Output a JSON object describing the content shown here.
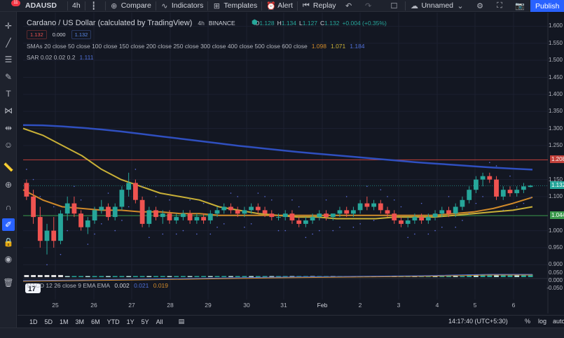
{
  "toolbar": {
    "symbol": "ADAUSD",
    "interval": "4h",
    "compare": "Compare",
    "indicators": "Indicators",
    "templates": "Templates",
    "alert": "Alert",
    "replay": "Replay",
    "layout_name": "Unnamed",
    "publish": "Publish",
    "notification_count": "11"
  },
  "legend": {
    "title": "Cardano / US Dollar (calculated by TradingView)",
    "interval": "4h",
    "exchange": "BINANCE",
    "open_label": "O",
    "open": "1.128",
    "high_label": "H",
    "high": "1.134",
    "low_label": "L",
    "low": "1.127",
    "close_label": "C",
    "close": "1.132",
    "change": "+0.004 (+0.35%)",
    "sell_price": "1.132",
    "spread": "0.000",
    "buy_price": "1.132",
    "sma_text": "SMAs 20 close 50 close 100 close 150 close 200 close 250 close 300 close 400 close 500 close 600 close",
    "sma_val1": "1.098",
    "sma_val2": "1.071",
    "sma_val3": "1.184",
    "sar_text": "SAR 0.02 0.02 0.2",
    "sar_val": "1.111",
    "macd_text": "MACD 12 26 close 9 EMA EMA",
    "macd_val1": "0.002",
    "macd_val2": "0.021",
    "macd_val3": "0.019"
  },
  "price_axis": {
    "labels": [
      "1.600",
      "1.550",
      "1.500",
      "1.450",
      "1.400",
      "1.350",
      "1.300",
      "1.250",
      "1.150",
      "1.100",
      "1.000",
      "0.950",
      "0.900"
    ],
    "tag_red": "1.208",
    "tag_current": "1.132",
    "tag_green": "1.044",
    "macd_labels": [
      "0.050",
      "0.000",
      "-0.050"
    ]
  },
  "time_axis": {
    "labels": [
      "25",
      "26",
      "27",
      "28",
      "29",
      "30",
      "31",
      "Feb",
      "2",
      "3",
      "4",
      "5",
      "6"
    ]
  },
  "bottom": {
    "ranges": [
      "1D",
      "5D",
      "1M",
      "3M",
      "6M",
      "YTD",
      "1Y",
      "5Y",
      "All"
    ],
    "clock": "14:17:40 (UTC+5:30)",
    "percent": "%",
    "log": "log",
    "auto": "auto"
  },
  "colors": {
    "up": "#26a69a",
    "down": "#ef5350",
    "sma_blue": "#2f4fbf",
    "sma_yellow": "#c9b037",
    "sma_orange": "#d08a2a",
    "red_line": "#c2413b",
    "green_line": "#3c9a4d"
  },
  "chart_data": {
    "type": "candlestick",
    "symbol": "ADAUSD",
    "interval": "4h",
    "candles_ohlc": [
      [
        1.14,
        1.15,
        1.09,
        1.1
      ],
      [
        1.1,
        1.12,
        1.02,
        1.04
      ],
      [
        1.04,
        1.07,
        0.95,
        0.97
      ],
      [
        0.97,
        1.02,
        0.93,
        1.0
      ],
      [
        1.0,
        1.04,
        0.95,
        0.97
      ],
      [
        0.97,
        1.06,
        0.96,
        1.05
      ],
      [
        1.05,
        1.1,
        1.03,
        1.08
      ],
      [
        1.08,
        1.1,
        1.04,
        1.05
      ],
      [
        1.05,
        1.06,
        1.0,
        1.01
      ],
      [
        1.01,
        1.04,
        0.99,
        1.03
      ],
      [
        1.03,
        1.07,
        1.02,
        1.06
      ],
      [
        1.06,
        1.09,
        1.05,
        1.07
      ],
      [
        1.07,
        1.08,
        1.03,
        1.04
      ],
      [
        1.04,
        1.08,
        1.03,
        1.07
      ],
      [
        1.07,
        1.13,
        1.06,
        1.12
      ],
      [
        1.12,
        1.17,
        1.1,
        1.14
      ],
      [
        1.14,
        1.15,
        1.08,
        1.09
      ],
      [
        1.09,
        1.1,
        1.01,
        1.02
      ],
      [
        1.02,
        1.07,
        1.01,
        1.06
      ],
      [
        1.06,
        1.07,
        1.03,
        1.04
      ],
      [
        1.04,
        1.06,
        1.02,
        1.05
      ],
      [
        1.05,
        1.06,
        1.02,
        1.03
      ],
      [
        1.03,
        1.05,
        1.02,
        1.04
      ],
      [
        1.04,
        1.06,
        1.03,
        1.05
      ],
      [
        1.05,
        1.06,
        1.02,
        1.03
      ],
      [
        1.03,
        1.05,
        1.02,
        1.04
      ],
      [
        1.04,
        1.05,
        1.02,
        1.03
      ],
      [
        1.03,
        1.06,
        1.02,
        1.05
      ],
      [
        1.05,
        1.07,
        1.04,
        1.06
      ],
      [
        1.06,
        1.08,
        1.05,
        1.07
      ],
      [
        1.07,
        1.08,
        1.05,
        1.06
      ],
      [
        1.06,
        1.07,
        1.04,
        1.05
      ],
      [
        1.05,
        1.07,
        1.04,
        1.06
      ],
      [
        1.06,
        1.08,
        1.05,
        1.07
      ],
      [
        1.07,
        1.08,
        1.05,
        1.06
      ],
      [
        1.06,
        1.07,
        1.04,
        1.05
      ],
      [
        1.05,
        1.06,
        1.03,
        1.04
      ],
      [
        1.04,
        1.05,
        1.03,
        1.04
      ],
      [
        1.04,
        1.06,
        1.03,
        1.05
      ],
      [
        1.05,
        1.06,
        1.02,
        1.03
      ],
      [
        1.03,
        1.04,
        1.01,
        1.02
      ],
      [
        1.02,
        1.04,
        1.01,
        1.03
      ],
      [
        1.03,
        1.05,
        1.02,
        1.04
      ],
      [
        1.04,
        1.06,
        1.03,
        1.05
      ],
      [
        1.05,
        1.06,
        1.03,
        1.04
      ],
      [
        1.04,
        1.05,
        1.03,
        1.05
      ],
      [
        1.05,
        1.07,
        1.04,
        1.06
      ],
      [
        1.06,
        1.07,
        1.04,
        1.05
      ],
      [
        1.05,
        1.07,
        1.04,
        1.06
      ],
      [
        1.06,
        1.09,
        1.05,
        1.08
      ],
      [
        1.08,
        1.1,
        1.06,
        1.07
      ],
      [
        1.07,
        1.09,
        1.06,
        1.08
      ],
      [
        1.08,
        1.09,
        1.05,
        1.06
      ],
      [
        1.06,
        1.07,
        1.04,
        1.05
      ],
      [
        1.05,
        1.06,
        1.02,
        1.03
      ],
      [
        1.03,
        1.04,
        1.01,
        1.02
      ],
      [
        1.02,
        1.04,
        1.01,
        1.03
      ],
      [
        1.03,
        1.05,
        1.02,
        1.04
      ],
      [
        1.04,
        1.05,
        1.02,
        1.03
      ],
      [
        1.03,
        1.05,
        1.02,
        1.04
      ],
      [
        1.04,
        1.06,
        1.03,
        1.05
      ],
      [
        1.05,
        1.07,
        1.04,
        1.06
      ],
      [
        1.06,
        1.07,
        1.04,
        1.05
      ],
      [
        1.05,
        1.08,
        1.04,
        1.07
      ],
      [
        1.07,
        1.1,
        1.06,
        1.09
      ],
      [
        1.09,
        1.13,
        1.08,
        1.12
      ],
      [
        1.12,
        1.16,
        1.11,
        1.15
      ],
      [
        1.15,
        1.17,
        1.13,
        1.16
      ],
      [
        1.16,
        1.17,
        1.14,
        1.15
      ],
      [
        1.15,
        1.16,
        1.09,
        1.1
      ],
      [
        1.1,
        1.13,
        1.09,
        1.12
      ],
      [
        1.12,
        1.13,
        1.1,
        1.11
      ],
      [
        1.11,
        1.13,
        1.1,
        1.12
      ],
      [
        1.12,
        1.14,
        1.11,
        1.13
      ],
      [
        1.128,
        1.134,
        1.127,
        1.132
      ]
    ],
    "sma_blue": [
      1.31,
      1.309,
      1.306,
      1.302,
      1.297,
      1.291,
      1.284,
      1.277,
      1.27,
      1.263,
      1.256,
      1.249,
      1.243,
      1.237,
      1.231,
      1.226,
      1.221,
      1.216,
      1.211,
      1.206,
      1.201,
      1.197,
      1.193,
      1.189,
      1.185,
      1.182,
      1.179
    ],
    "sma_yellow": [
      1.3,
      1.28,
      1.25,
      1.22,
      1.18,
      1.15,
      1.13,
      1.11,
      1.1,
      1.09,
      1.07,
      1.06,
      1.05,
      1.045,
      1.04,
      1.04,
      1.035,
      1.035,
      1.035,
      1.04,
      1.04,
      1.04,
      1.045,
      1.05,
      1.055,
      1.06,
      1.07
    ],
    "sma_orange": [
      1.12,
      1.09,
      1.07,
      1.065,
      1.06,
      1.06,
      1.055,
      1.055,
      1.05,
      1.05,
      1.045,
      1.045,
      1.045,
      1.045,
      1.045,
      1.045,
      1.045,
      1.045,
      1.045,
      1.045,
      1.045,
      1.045,
      1.05,
      1.055,
      1.065,
      1.08,
      1.098
    ],
    "ylim": [
      0.88,
      1.64
    ],
    "x_labels": [
      "25",
      "26",
      "27",
      "28",
      "29",
      "30",
      "31",
      "Feb",
      "2",
      "3",
      "4",
      "5",
      "6"
    ],
    "hlines": [
      1.208,
      1.132,
      1.044
    ]
  }
}
